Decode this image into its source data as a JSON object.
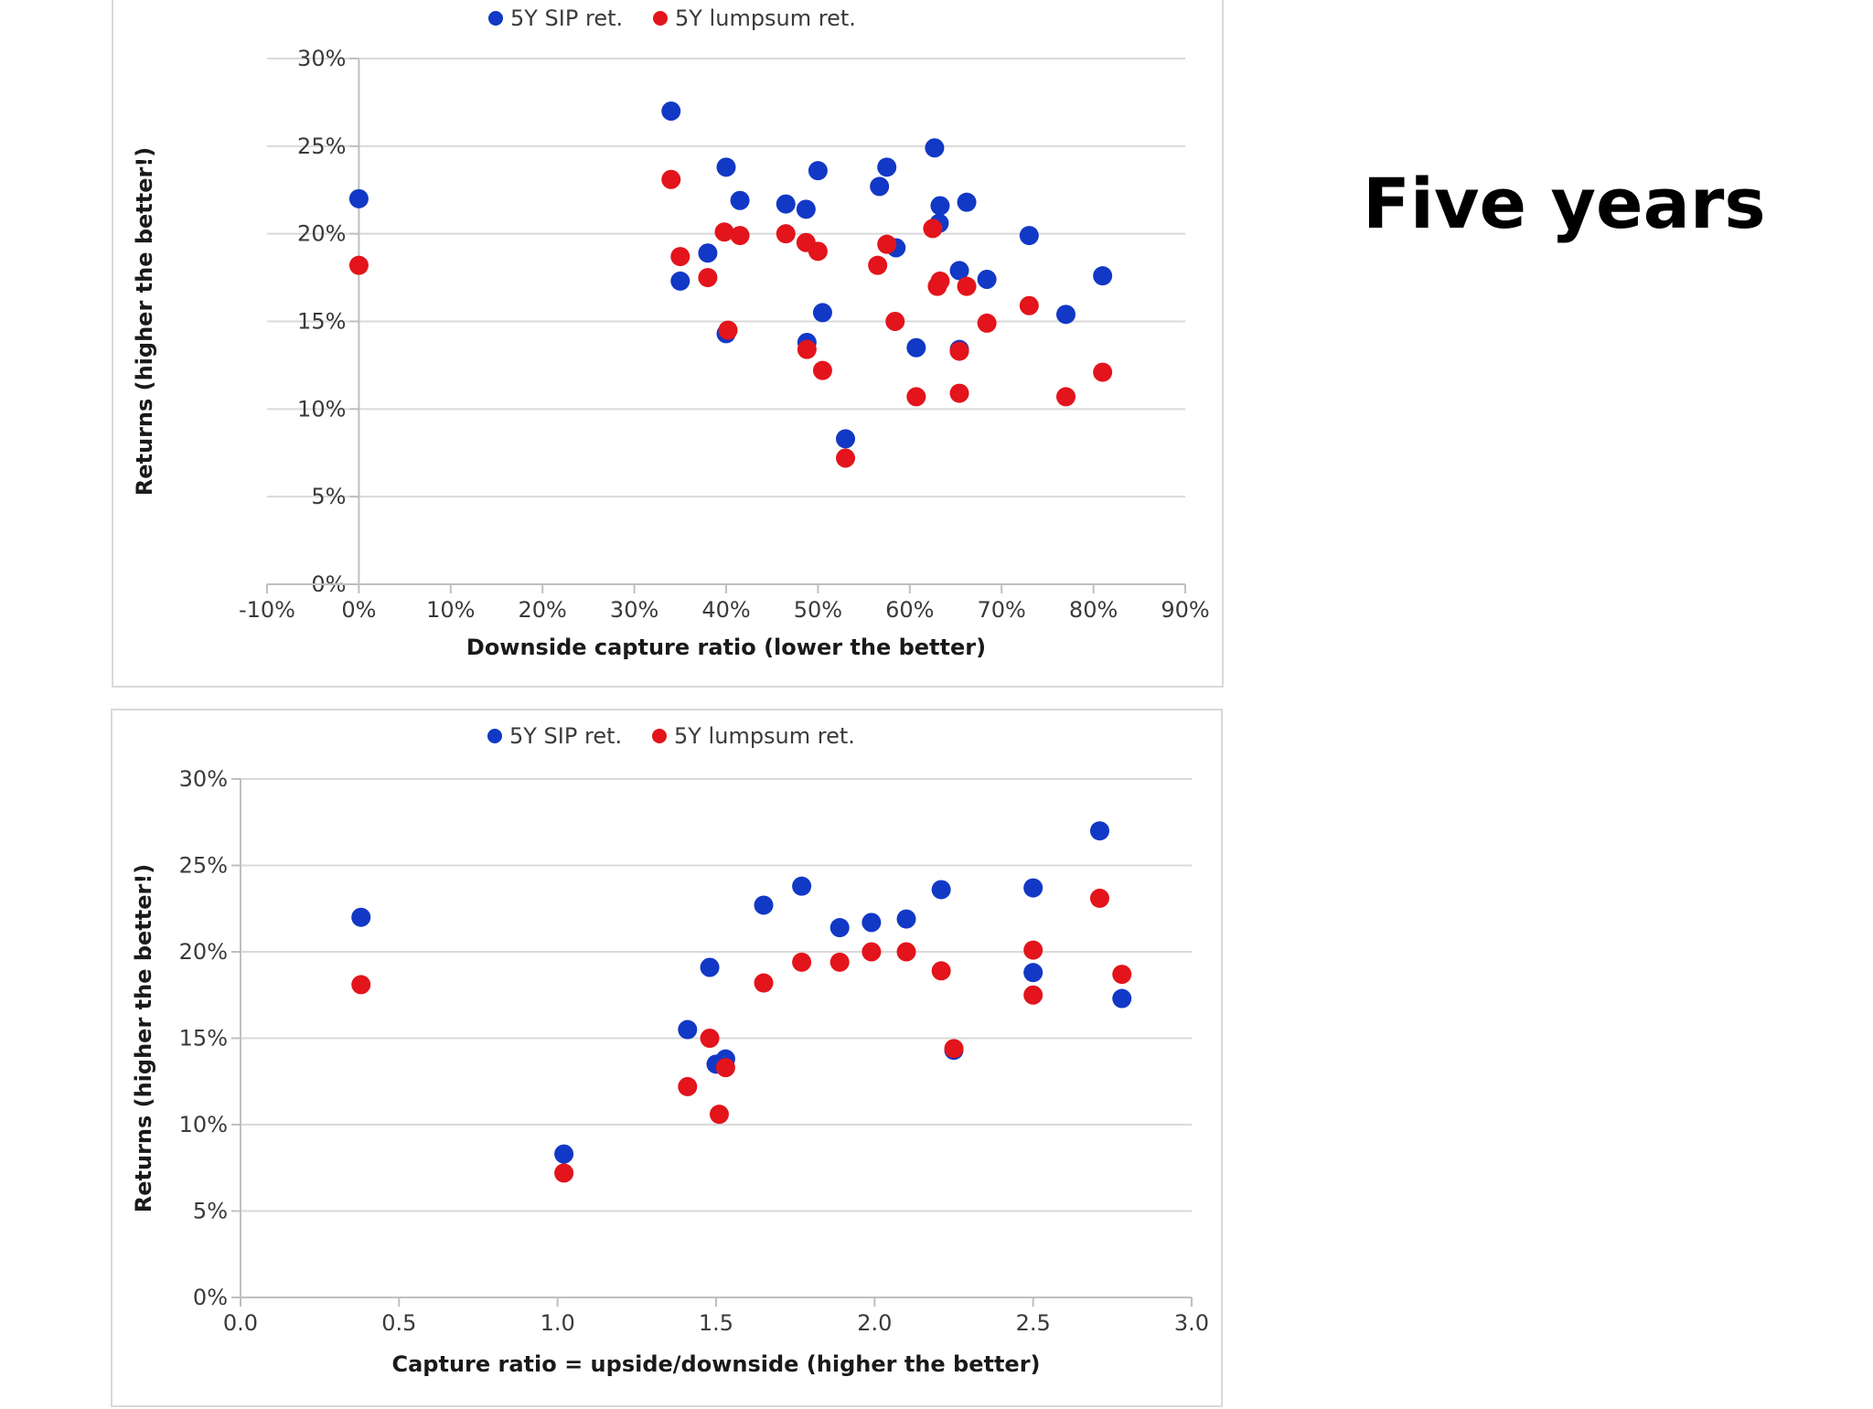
{
  "slide": {
    "title": "Five years"
  },
  "colors": {
    "sip": "#1238c6",
    "lumpsum": "#e3141b",
    "grid": "#d9d9d9",
    "axis": "#bfbfbf"
  },
  "chart_data": [
    {
      "type": "scatter",
      "title": "",
      "xlabel": "Downside capture ratio (lower the better)",
      "ylabel": "Returns (higher the better!)",
      "xlim": [
        -0.1,
        0.9
      ],
      "ylim": [
        0,
        0.3
      ],
      "grid": true,
      "legend_position": "top",
      "x_ticks": [
        "-10%",
        "0%",
        "10%",
        "20%",
        "30%",
        "40%",
        "50%",
        "60%",
        "70%",
        "80%",
        "90%"
      ],
      "y_ticks": [
        "0%",
        "5%",
        "10%",
        "15%",
        "20%",
        "25%",
        "30%"
      ],
      "series": [
        {
          "name": "5Y SIP ret.",
          "color": "#1238c6",
          "points": [
            [
              0.0,
              0.22
            ],
            [
              0.34,
              0.27
            ],
            [
              0.35,
              0.173
            ],
            [
              0.38,
              0.189
            ],
            [
              0.4,
              0.238
            ],
            [
              0.4,
              0.143
            ],
            [
              0.415,
              0.219
            ],
            [
              0.465,
              0.217
            ],
            [
              0.487,
              0.214
            ],
            [
              0.488,
              0.138
            ],
            [
              0.5,
              0.236
            ],
            [
              0.505,
              0.155
            ],
            [
              0.53,
              0.083
            ],
            [
              0.567,
              0.227
            ],
            [
              0.575,
              0.238
            ],
            [
              0.585,
              0.192
            ],
            [
              0.607,
              0.135
            ],
            [
              0.627,
              0.249
            ],
            [
              0.633,
              0.216
            ],
            [
              0.632,
              0.206
            ],
            [
              0.654,
              0.179
            ],
            [
              0.654,
              0.134
            ],
            [
              0.662,
              0.218
            ],
            [
              0.684,
              0.174
            ],
            [
              0.73,
              0.199
            ],
            [
              0.77,
              0.154
            ],
            [
              0.81,
              0.176
            ]
          ]
        },
        {
          "name": "5Y lumpsum ret.",
          "color": "#e3141b",
          "points": [
            [
              0.0,
              0.182
            ],
            [
              0.34,
              0.231
            ],
            [
              0.35,
              0.187
            ],
            [
              0.38,
              0.175
            ],
            [
              0.398,
              0.201
            ],
            [
              0.402,
              0.145
            ],
            [
              0.415,
              0.199
            ],
            [
              0.465,
              0.2
            ],
            [
              0.487,
              0.195
            ],
            [
              0.488,
              0.134
            ],
            [
              0.5,
              0.19
            ],
            [
              0.505,
              0.122
            ],
            [
              0.53,
              0.072
            ],
            [
              0.565,
              0.182
            ],
            [
              0.575,
              0.194
            ],
            [
              0.584,
              0.15
            ],
            [
              0.607,
              0.107
            ],
            [
              0.625,
              0.203
            ],
            [
              0.63,
              0.17
            ],
            [
              0.633,
              0.173
            ],
            [
              0.654,
              0.133
            ],
            [
              0.654,
              0.109
            ],
            [
              0.662,
              0.17
            ],
            [
              0.684,
              0.149
            ],
            [
              0.73,
              0.159
            ],
            [
              0.77,
              0.107
            ],
            [
              0.81,
              0.121
            ]
          ]
        }
      ]
    },
    {
      "type": "scatter",
      "title": "",
      "xlabel": "Capture ratio = upside/downside (higher the better)",
      "ylabel": "Returns (higher the better!)",
      "xlim": [
        0,
        3
      ],
      "ylim": [
        0,
        0.3
      ],
      "grid": true,
      "legend_position": "top",
      "x_ticks": [
        "0.0",
        "0.5",
        "1.0",
        "1.5",
        "2.0",
        "2.5",
        "3.0"
      ],
      "y_ticks": [
        "0%",
        "5%",
        "10%",
        "15%",
        "20%",
        "25%",
        "30%"
      ],
      "series": [
        {
          "name": "5Y SIP ret.",
          "color": "#1238c6",
          "points": [
            [
              0.38,
              0.22
            ],
            [
              1.02,
              0.083
            ],
            [
              1.41,
              0.155
            ],
            [
              1.48,
              0.191
            ],
            [
              1.5,
              0.135
            ],
            [
              1.53,
              0.138
            ],
            [
              1.65,
              0.227
            ],
            [
              1.77,
              0.238
            ],
            [
              1.89,
              0.214
            ],
            [
              1.99,
              0.217
            ],
            [
              2.1,
              0.219
            ],
            [
              2.21,
              0.236
            ],
            [
              2.25,
              0.143
            ],
            [
              2.5,
              0.237
            ],
            [
              2.5,
              0.188
            ],
            [
              2.71,
              0.27
            ],
            [
              2.78,
              0.173
            ]
          ]
        },
        {
          "name": "5Y lumpsum ret.",
          "color": "#e3141b",
          "points": [
            [
              0.38,
              0.181
            ],
            [
              1.02,
              0.072
            ],
            [
              1.41,
              0.122
            ],
            [
              1.48,
              0.15
            ],
            [
              1.51,
              0.106
            ],
            [
              1.53,
              0.133
            ],
            [
              1.65,
              0.182
            ],
            [
              1.77,
              0.194
            ],
            [
              1.89,
              0.194
            ],
            [
              1.99,
              0.2
            ],
            [
              2.1,
              0.2
            ],
            [
              2.21,
              0.189
            ],
            [
              2.25,
              0.144
            ],
            [
              2.5,
              0.201
            ],
            [
              2.5,
              0.175
            ],
            [
              2.71,
              0.231
            ],
            [
              2.78,
              0.187
            ]
          ]
        }
      ]
    }
  ]
}
